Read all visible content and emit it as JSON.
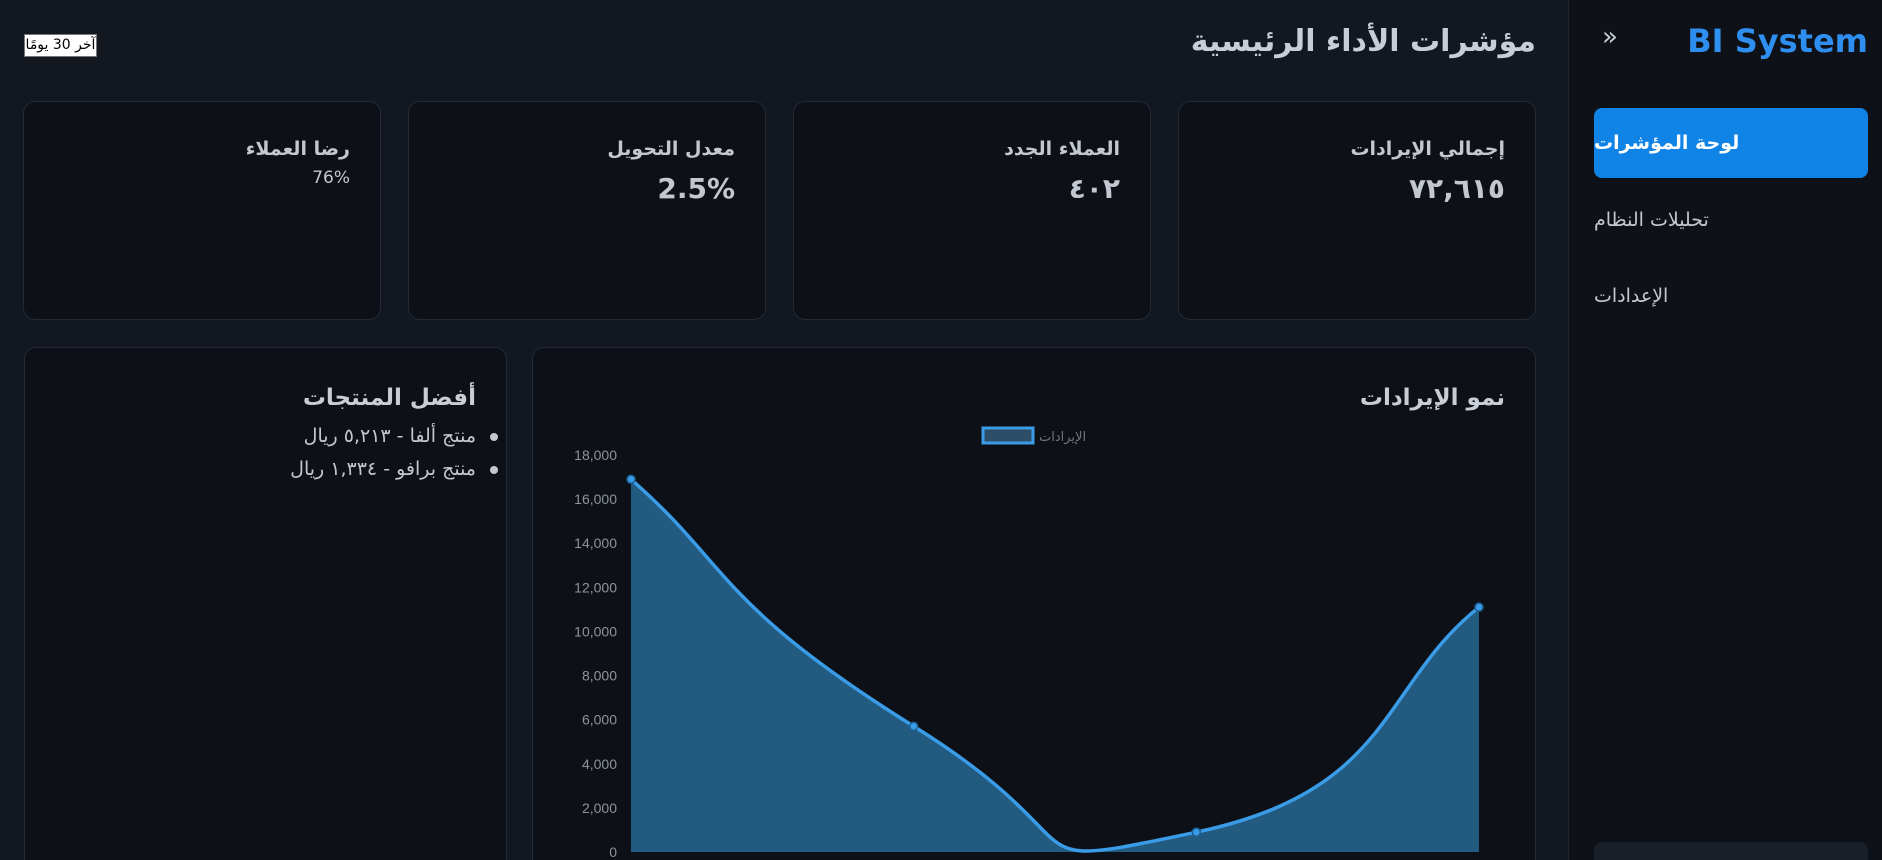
{
  "sidebar": {
    "brand": "BI System",
    "collapse_icon": "chevron-double-icon",
    "items": [
      {
        "label": "لوحة المؤشرات",
        "active": true
      },
      {
        "label": "تحليلات النظام",
        "active": false
      },
      {
        "label": "الإعدادات",
        "active": false
      }
    ]
  },
  "header": {
    "title": "مؤشرات الأداء الرئيسية",
    "range_label": "آخر 30 يومًا"
  },
  "kpis": [
    {
      "label": "إجمالي الإيرادات",
      "value": "٧٢,٦١٥"
    },
    {
      "label": "العملاء الجدد",
      "value": "٤٠٢"
    },
    {
      "label": "معدل التحويل",
      "value": "2.5%"
    },
    {
      "label": "رضا العملاء",
      "value": "76%"
    }
  ],
  "products": {
    "title": "أفضل المنتجات",
    "items": [
      "منتج ألفا - ٥,٢١٣ ريال",
      "منتج برافو - ١,٣٣٤ ريال"
    ]
  },
  "revenue_panel": {
    "title": "نمو الإيرادات"
  },
  "colors": {
    "accent": "#0f84e6",
    "brand": "#2f8ff0",
    "line": "#3a9be6",
    "area": "#225a80"
  },
  "chart_data": {
    "type": "area",
    "title": "نمو الإيرادات",
    "legend": [
      "الإيرادات"
    ],
    "legend_position": "top-center",
    "series": [
      {
        "name": "الإيرادات",
        "values": [
          16900,
          5700,
          900,
          11100
        ]
      }
    ],
    "ylim": [
      0,
      18000
    ],
    "yticks": [
      "0",
      "2,000",
      "4,000",
      "6,000",
      "8,000",
      "10,000",
      "12,000",
      "14,000",
      "16,000",
      "18,000"
    ],
    "grid": false
  }
}
